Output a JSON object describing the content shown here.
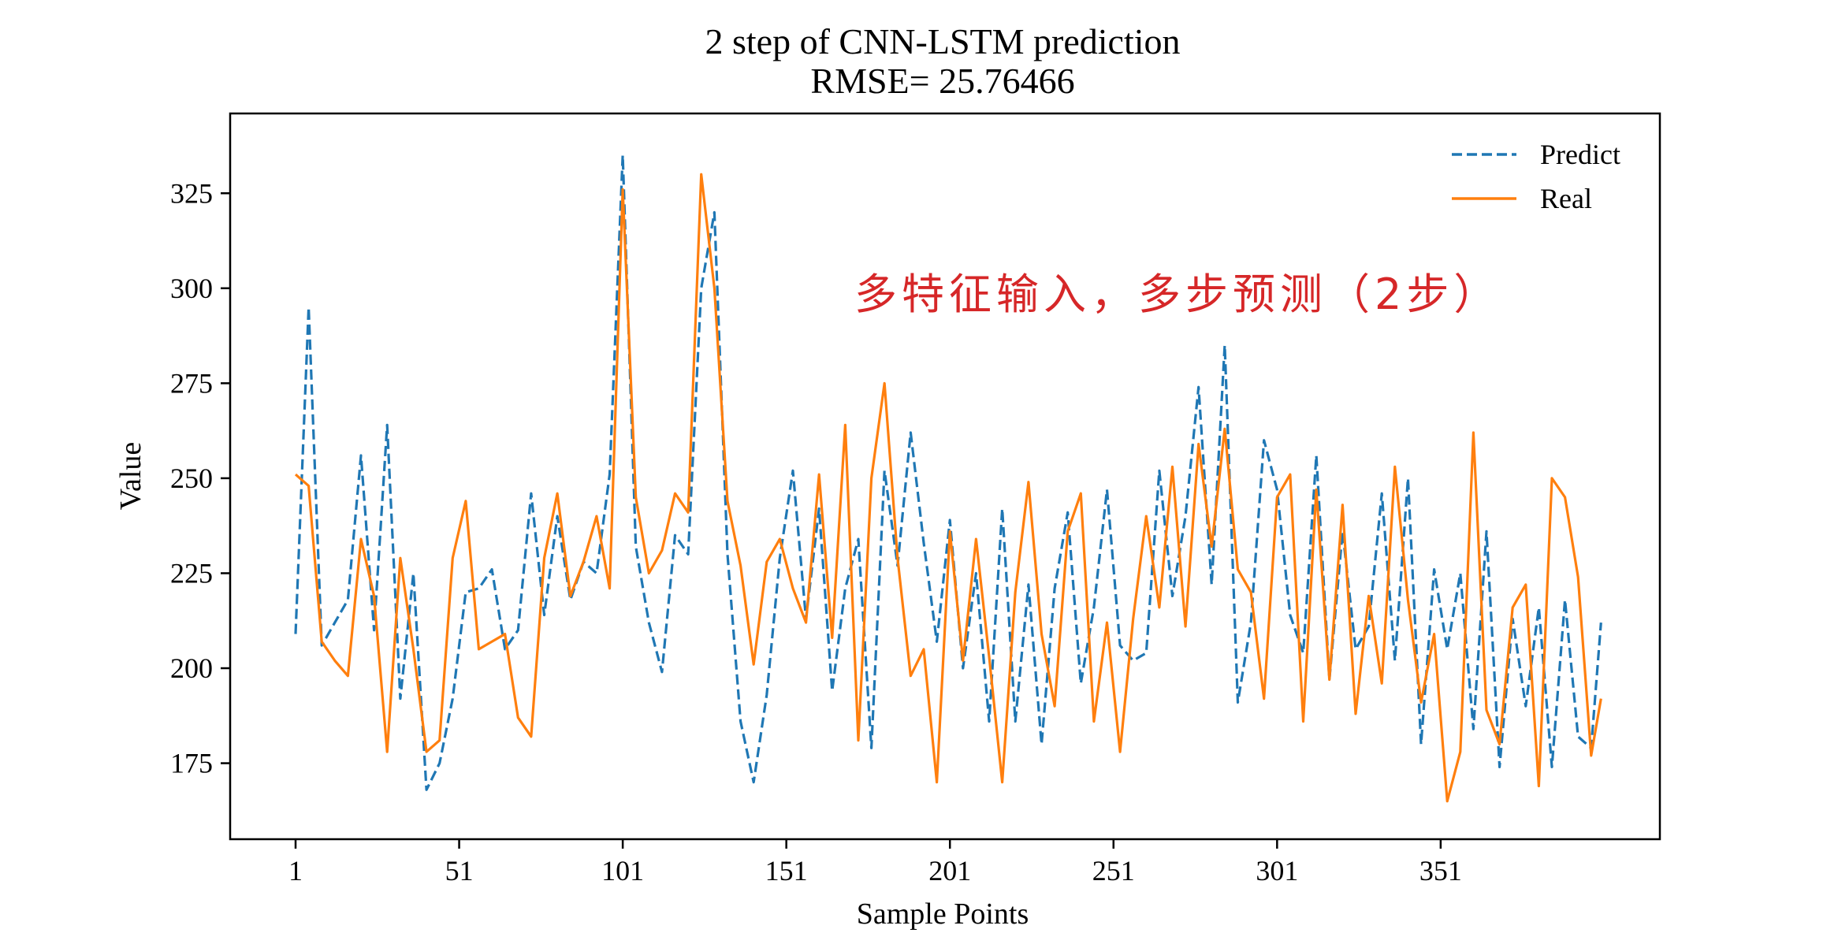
{
  "chart_data": {
    "type": "line",
    "title": "2 step of CNN-LSTM prediction",
    "subtitle": "RMSE= 25.76466",
    "xlabel": "Sample Points",
    "ylabel": "Value",
    "xlim": [
      -19,
      418
    ],
    "ylim": [
      155,
      346
    ],
    "xticks": [
      1,
      51,
      101,
      151,
      201,
      251,
      301,
      351
    ],
    "xtick_labels": [
      "1",
      "51",
      "101",
      "151",
      "201",
      "251",
      "301",
      "351"
    ],
    "yticks": [
      175,
      200,
      225,
      250,
      275,
      300,
      325
    ],
    "ytick_labels": [
      "175",
      "200",
      "225",
      "250",
      "275",
      "300",
      "325"
    ],
    "legend": {
      "position": "top-right",
      "entries": [
        "Predict",
        "Real"
      ]
    },
    "annotation": "多特征输入，多步预测（2步）",
    "colors": {
      "predict": "#1f77b4",
      "real": "#ff7f0e",
      "annotation": "#d62728"
    },
    "x": [
      1,
      5,
      9,
      13,
      17,
      21,
      25,
      29,
      33,
      37,
      41,
      45,
      49,
      53,
      57,
      61,
      65,
      69,
      73,
      77,
      81,
      85,
      89,
      93,
      97,
      101,
      105,
      109,
      113,
      117,
      121,
      125,
      129,
      133,
      137,
      141,
      145,
      149,
      153,
      157,
      161,
      165,
      169,
      173,
      177,
      181,
      185,
      189,
      193,
      197,
      201,
      205,
      209,
      213,
      217,
      221,
      225,
      229,
      233,
      237,
      241,
      245,
      249,
      253,
      257,
      261,
      265,
      269,
      273,
      277,
      281,
      285,
      289,
      293,
      297,
      301,
      305,
      309,
      313,
      317,
      321,
      325,
      329,
      333,
      337,
      341,
      345,
      349,
      353,
      357,
      361,
      365,
      369,
      373,
      377,
      381,
      385,
      389,
      393,
      397,
      400
    ],
    "series": [
      {
        "name": "Predict",
        "style": "dashed",
        "values": [
          209,
          295,
          206,
          212,
          218,
          256,
          210,
          264,
          192,
          225,
          168,
          175,
          192,
          220,
          221,
          226,
          205,
          210,
          246,
          214,
          240,
          218,
          228,
          225,
          251,
          335,
          232,
          212,
          199,
          235,
          230,
          300,
          320,
          230,
          186,
          170,
          193,
          229,
          252,
          213,
          242,
          194,
          221,
          234,
          179,
          252,
          227,
          262,
          233,
          207,
          239,
          200,
          225,
          186,
          242,
          186,
          222,
          180,
          221,
          241,
          196,
          216,
          247,
          206,
          202,
          204,
          252,
          219,
          240,
          274,
          222,
          285,
          191,
          212,
          260,
          247,
          214,
          204,
          256,
          197,
          236,
          205,
          211,
          246,
          202,
          250,
          180,
          226,
          205,
          225,
          184,
          236,
          174,
          213,
          190,
          216,
          174,
          218,
          182,
          179,
          212
        ]
      },
      {
        "name": "Real",
        "style": "solid",
        "values": [
          251,
          248,
          207,
          202,
          198,
          234,
          219,
          178,
          229,
          205,
          178,
          181,
          229,
          244,
          205,
          207,
          209,
          187,
          182,
          229,
          246,
          219,
          228,
          240,
          221,
          326,
          245,
          225,
          231,
          246,
          241,
          330,
          300,
          244,
          227,
          201,
          228,
          234,
          221,
          212,
          251,
          208,
          264,
          181,
          250,
          275,
          229,
          198,
          205,
          170,
          236,
          202,
          234,
          203,
          170,
          220,
          249,
          209,
          190,
          236,
          246,
          186,
          212,
          178,
          213,
          240,
          216,
          253,
          211,
          259,
          232,
          263,
          226,
          220,
          192,
          245,
          251,
          186,
          247,
          197,
          243,
          188,
          219,
          196,
          253,
          218,
          191,
          209,
          165,
          178,
          262,
          189,
          180,
          216,
          222,
          169,
          250,
          245,
          224,
          177,
          192
        ]
      }
    ]
  }
}
